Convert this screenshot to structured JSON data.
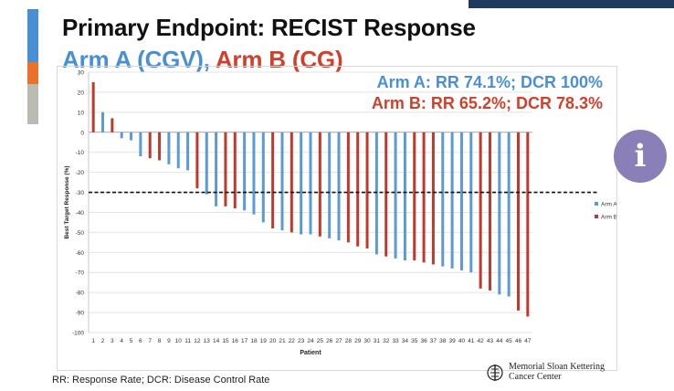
{
  "slide": {
    "title": "Primary Endpoint: RECIST Response",
    "subtitle_a": "Arm A (CGV)",
    "subtitle_sep": ",",
    "subtitle_b": "Arm B (CG)",
    "stat_a": "Arm A: RR 74.1%; DCR 100%",
    "stat_b": "Arm B: RR 65.2%; DCR 78.3%",
    "footnote": "RR: Response Rate; DCR: Disease Control Rate",
    "logo_line1": "Memorial Sloan Kettering",
    "logo_line2": "Cancer Center",
    "info_glyph": "i"
  },
  "colors": {
    "arm_a": "#5b9bd5",
    "arm_b": "#c0392b",
    "info": "#8a7fb6"
  },
  "chart_data": {
    "type": "bar",
    "title": "",
    "xlabel": "Patient",
    "ylabel": "Best Target Response (%)",
    "ylim": [
      -100,
      30
    ],
    "yticks": [
      30,
      20,
      10,
      0,
      -10,
      -20,
      -30,
      -40,
      -50,
      -60,
      -70,
      -80,
      -90,
      -100
    ],
    "threshold": -30,
    "legend": [
      {
        "name": "Arm A",
        "key": "A"
      },
      {
        "name": "Arm B",
        "key": "B"
      }
    ],
    "categories": [
      "1",
      "2",
      "3",
      "4",
      "5",
      "6",
      "7",
      "8",
      "9",
      "10",
      "11",
      "12",
      "13",
      "14",
      "15",
      "16",
      "17",
      "18",
      "19",
      "20",
      "21",
      "22",
      "23",
      "24",
      "25",
      "26",
      "27",
      "28",
      "29",
      "30",
      "31",
      "32",
      "33",
      "34",
      "35",
      "36",
      "37",
      "38",
      "39",
      "40",
      "41",
      "42",
      "43",
      "44",
      "45",
      "46",
      "47"
    ],
    "arms": [
      "B",
      "A",
      "B",
      "A",
      "A",
      "A",
      "B",
      "B",
      "A",
      "A",
      "A",
      "B",
      "A",
      "A",
      "B",
      "B",
      "A",
      "A",
      "A",
      "B",
      "A",
      "B",
      "A",
      "A",
      "B",
      "A",
      "A",
      "B",
      "B",
      "B",
      "A",
      "B",
      "A",
      "A",
      "B",
      "B",
      "B",
      "A",
      "A",
      "A",
      "A",
      "B",
      "B",
      "A",
      "A",
      "B",
      "B"
    ],
    "values": [
      25,
      10,
      7,
      -3,
      -4,
      -12,
      -13,
      -14,
      -16,
      -18,
      -19,
      -28,
      -31,
      -37,
      -37,
      -38,
      -39,
      -41,
      -45,
      -48,
      -49,
      -50,
      -51,
      -51,
      -52,
      -53,
      -54,
      -55,
      -57,
      -58,
      -61,
      -62,
      -63,
      -64,
      -64,
      -65,
      -66,
      -67,
      -68,
      -69,
      -70,
      -78,
      -79,
      -81,
      -82,
      -89,
      -92
    ]
  }
}
